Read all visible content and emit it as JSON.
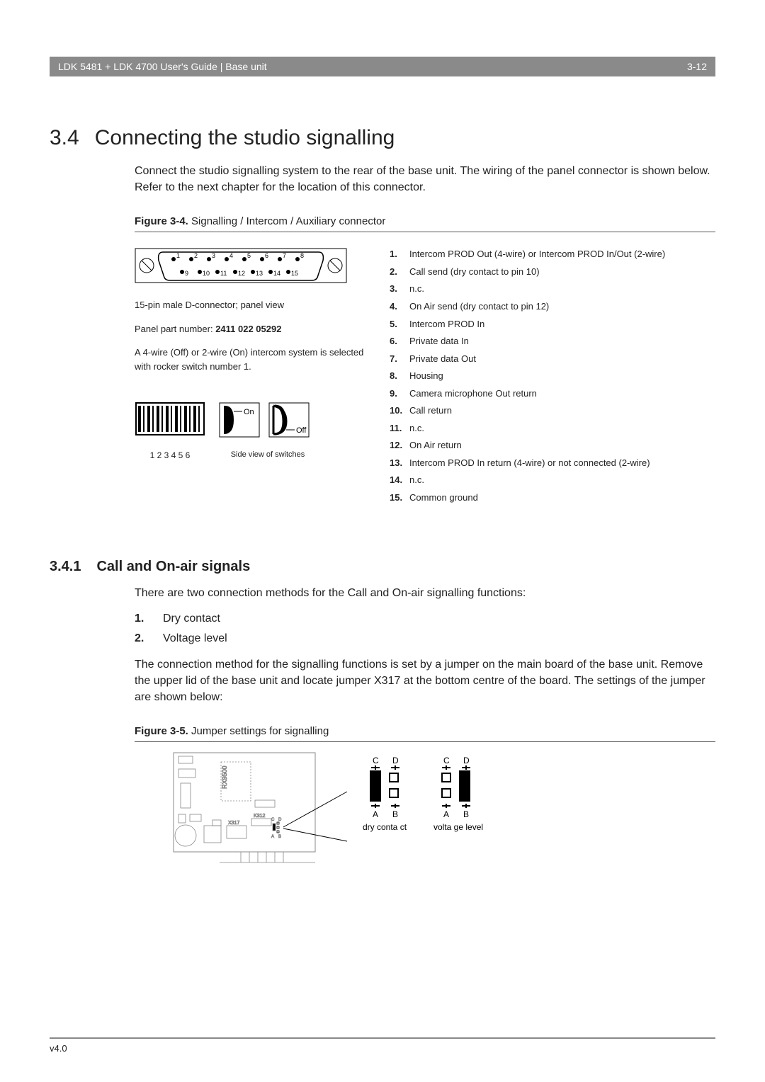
{
  "header": {
    "title": "LDK 5481 + LDK 4700 User's Guide | Base unit",
    "page": "3-12"
  },
  "section": {
    "num": "3.4",
    "title": "Connecting the studio signalling",
    "intro": "Connect the studio signalling system to the rear of the base unit. The wiring of the panel connector is shown below. Refer to the next chapter for the location of this connector."
  },
  "figure34": {
    "label_bold": "Figure 3-4.",
    "label_rest": "Signalling / Intercom / Auxiliary connector",
    "connector_caption": "15-pin male D-connector; panel view",
    "part_prefix": "Panel part number: ",
    "part_num": "2411 022 05292",
    "intercom_note": "A 4-wire (Off) or 2-wire (On) intercom system is selected with rocker switch number 1.",
    "switch_nums": "1 2 3 4 5 6",
    "side_caption": "Side view of switches",
    "on_label": "On",
    "off_label": "Off",
    "pins": [
      {
        "n": "1.",
        "d": "Intercom PROD Out (4-wire) or Intercom PROD In/Out (2-wire)"
      },
      {
        "n": "2.",
        "d": "Call send (dry contact to pin 10)"
      },
      {
        "n": "3.",
        "d": "n.c."
      },
      {
        "n": "4.",
        "d": "On Air send (dry contact to pin 12)"
      },
      {
        "n": "5.",
        "d": "Intercom PROD In"
      },
      {
        "n": "6.",
        "d": "Private data In"
      },
      {
        "n": "7.",
        "d": "Private data Out"
      },
      {
        "n": "8.",
        "d": "Housing"
      },
      {
        "n": "9.",
        "d": "Camera microphone Out return"
      },
      {
        "n": "10.",
        "d": "Call return"
      },
      {
        "n": "11.",
        "d": "n.c."
      },
      {
        "n": "12.",
        "d": "On Air return"
      },
      {
        "n": "13.",
        "d": "Intercom PROD In return (4-wire) or not connected (2-wire)"
      },
      {
        "n": "14.",
        "d": "n.c."
      },
      {
        "n": "15.",
        "d": "Common ground"
      }
    ]
  },
  "subsection": {
    "num": "3.4.1",
    "title": "Call and On-air signals",
    "intro": "There are two connection methods for the Call and On-air signalling functions:",
    "methods": [
      {
        "n": "1.",
        "d": "Dry contact"
      },
      {
        "n": "2.",
        "d": "Voltage level"
      }
    ],
    "body2": "The connection method for the signalling functions is set by a jumper on the main board of the base unit. Remove the upper lid of the base unit and locate jumper X317 at the bottom centre of the board. The settings of the jumper are shown below:"
  },
  "figure35": {
    "label_bold": "Figure 3-5.",
    "label_rest": "Jumper settings for signalling",
    "labels": {
      "c": "C",
      "d": "D",
      "a": "A",
      "b": "B",
      "dry": "dry conta ct",
      "volt": "volta ge level",
      "x317": "X317",
      "k312": "K312"
    }
  },
  "footer": {
    "ver": "v4.0"
  },
  "colors": {
    "header_bg": "#8a8a8a",
    "rule": "#555555"
  }
}
